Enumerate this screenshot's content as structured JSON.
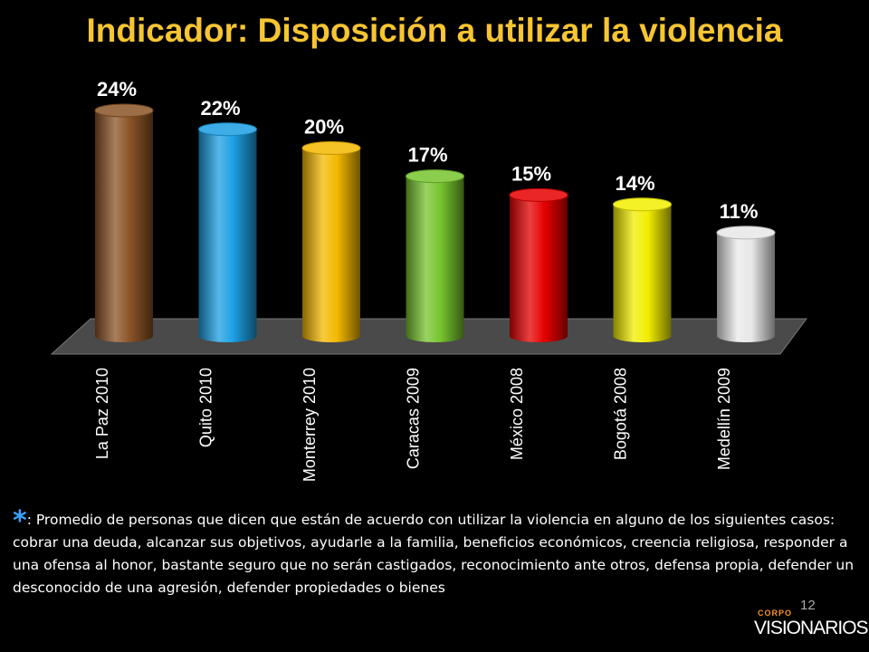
{
  "title": "Indicador: Disposición a utilizar la violencia",
  "page_number": "12",
  "logo": {
    "text_small": "CORPO",
    "text_large": "VISIONARIOS"
  },
  "note": {
    "marker": "*",
    "text": ": Promedio de personas que dicen que están de acuerdo con utilizar la violencia en alguno de los siguientes casos: cobrar una deuda, alcanzar sus objetivos, ayudarle a la familia, beneficios económicos, creencia religiosa, responder a una ofensa al honor, bastante seguro que no serán castigados, reconocimiento ante otros, defensa propia, defender un desconocido de una agresión,  defender propiedades o bienes"
  },
  "chart_data": {
    "type": "bar",
    "title": "Indicador: Disposición a utilizar la violencia",
    "categories": [
      "La Paz 2010",
      "Quito 2010",
      "Monterrey 2010",
      "Caracas 2009",
      "México 2008",
      "Bogotá 2008",
      "Medellín 2009"
    ],
    "values": [
      24,
      22,
      20,
      17,
      15,
      14,
      11
    ],
    "data_labels": [
      "24%",
      "22%",
      "20%",
      "17%",
      "15%",
      "14%",
      "11%"
    ],
    "colors": [
      "#8b5426",
      "#1c9fe3",
      "#f4b800",
      "#77c42e",
      "#e60000",
      "#f2ee00",
      "#e8e8e8"
    ],
    "unit": "%",
    "ylim": [
      0,
      24
    ],
    "grid": false,
    "legend": "none"
  }
}
